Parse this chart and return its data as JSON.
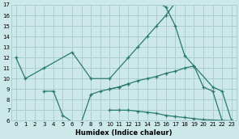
{
  "xlabel": "Humidex (Indice chaleur)",
  "background_color": "#cce8e8",
  "grid_color": "#aacfcf",
  "line_color": "#2a7a6a",
  "xlim": [
    -0.5,
    23.5
  ],
  "ylim": [
    6,
    17
  ],
  "xticks": [
    0,
    1,
    2,
    3,
    4,
    5,
    6,
    7,
    8,
    9,
    10,
    11,
    12,
    13,
    14,
    15,
    16,
    17,
    18,
    19,
    20,
    21,
    22,
    23
  ],
  "yticks": [
    6,
    7,
    8,
    9,
    10,
    11,
    12,
    13,
    14,
    15,
    16,
    17
  ],
  "series": [
    {
      "x": [
        0,
        1,
        3,
        6,
        8,
        10,
        12,
        13,
        14,
        15,
        16,
        17,
        14,
        15,
        16,
        17,
        18,
        19,
        20,
        21,
        22
      ],
      "y": [
        12,
        10,
        11,
        12.5,
        10,
        10,
        12,
        13,
        14,
        15,
        16,
        17.2,
        17.2,
        17.2,
        16.8,
        15,
        12.2,
        11.2,
        9.2,
        8.8,
        6.0
      ]
    },
    {
      "x": [
        3,
        4,
        5,
        6,
        7,
        8,
        9,
        10,
        11,
        12
      ],
      "y": [
        8.8,
        8.8,
        6.5,
        5.9,
        5.9,
        8.5,
        8.8,
        9.0,
        9.2,
        9.5
      ]
    },
    {
      "x": [
        10,
        11,
        12,
        13,
        14,
        15,
        16,
        17,
        18,
        19,
        21,
        22,
        23
      ],
      "y": [
        9.0,
        9.2,
        9.5,
        9.8,
        10.0,
        10.2,
        10.5,
        10.7,
        11.0,
        11.2,
        9.2,
        8.8,
        6.0
      ]
    },
    {
      "x": [
        10,
        11,
        12,
        13,
        14,
        15,
        16,
        17,
        18,
        19,
        20,
        23
      ],
      "y": [
        7.0,
        7.0,
        7.0,
        6.9,
        6.8,
        6.7,
        6.5,
        6.4,
        6.3,
        6.2,
        6.1,
        6.0
      ]
    }
  ]
}
